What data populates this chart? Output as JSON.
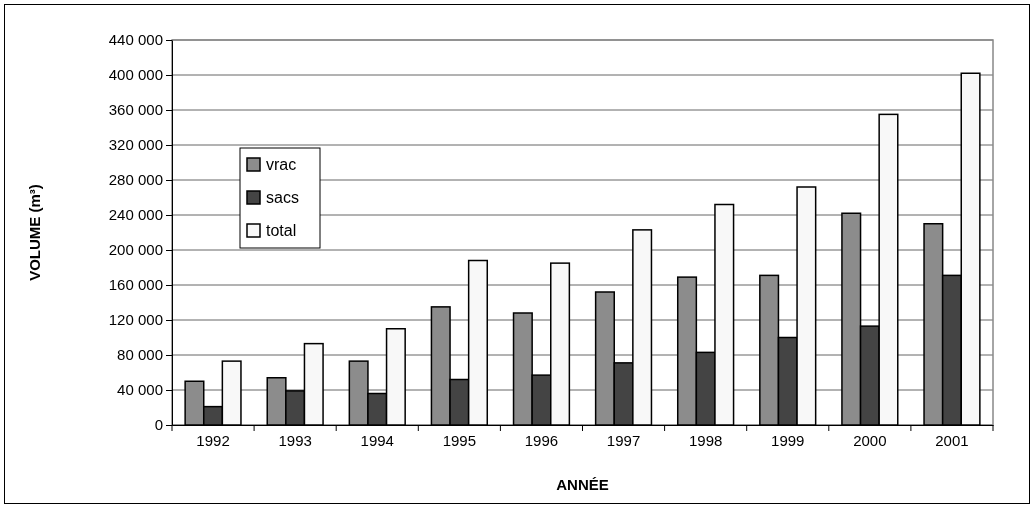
{
  "chart_data": {
    "type": "bar",
    "xlabel": "ANNÉE",
    "ylabel": "VOLUME (m³)",
    "categories": [
      "1992",
      "1993",
      "1994",
      "1995",
      "1996",
      "1997",
      "1998",
      "1999",
      "2000",
      "2001"
    ],
    "series": [
      {
        "name": "vrac",
        "color": "#8c8c8c",
        "values": [
          50000,
          54000,
          73000,
          135000,
          128000,
          152000,
          169000,
          171000,
          242000,
          230000
        ]
      },
      {
        "name": "sacs",
        "color": "#444444",
        "values": [
          21000,
          39000,
          36000,
          52000,
          57000,
          71000,
          83000,
          100000,
          113000,
          171000
        ]
      },
      {
        "name": "total",
        "color": "#f8f8f8",
        "values": [
          73000,
          93000,
          110000,
          188000,
          185000,
          223000,
          252000,
          272000,
          355000,
          402000
        ]
      }
    ],
    "ylim": [
      0,
      440000
    ],
    "yticks": [
      0,
      {
        "value": 40000,
        "label": "40 000"
      },
      {
        "value": 80000,
        "label": "80 000"
      },
      {
        "value": 120000,
        "label": "120 000"
      },
      {
        "value": 160000,
        "label": "160 000"
      },
      {
        "value": 200000,
        "label": "200 000"
      },
      {
        "value": 240000,
        "label": "240 000"
      },
      {
        "value": 280000,
        "label": "280 000"
      },
      {
        "value": 320000,
        "label": "320 000"
      },
      {
        "value": 360000,
        "label": "360 000"
      },
      {
        "value": 400000,
        "label": "400 000"
      },
      {
        "value": 440000,
        "label": "440 000"
      }
    ],
    "grid": "y",
    "legend": "left"
  }
}
